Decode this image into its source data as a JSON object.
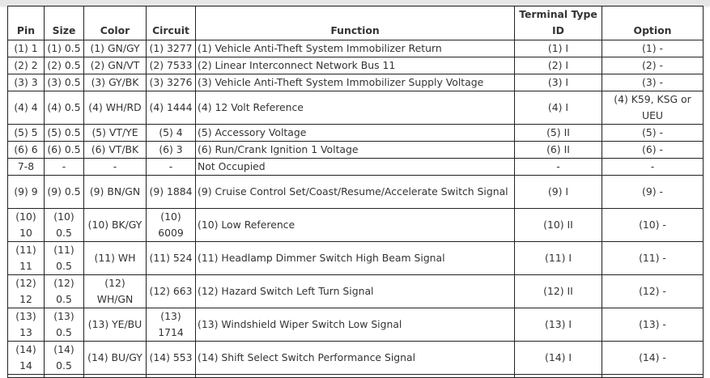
{
  "headers": {
    "pin": "Pin",
    "size": "Size",
    "color": "Color",
    "circuit": "Circuit",
    "function": "Function",
    "terminal": "Terminal Type ID",
    "option": "Option"
  },
  "rows": [
    {
      "pin": "(1) 1",
      "size": "(1) 0.5",
      "color": "(1) GN/GY",
      "circuit": "(1) 3277",
      "function": "(1) Vehicle Anti-Theft System Immobilizer Return",
      "terminal": "(1) I",
      "option": "(1) -"
    },
    {
      "pin": "(2) 2",
      "size": "(2) 0.5",
      "color": "(2) GN/VT",
      "circuit": "(2) 7533",
      "function": "(2) Linear Interconnect Network Bus 11",
      "terminal": "(2) I",
      "option": "(2) -"
    },
    {
      "pin": "(3) 3",
      "size": "(3) 0.5",
      "color": "(3) GY/BK",
      "circuit": "(3) 3276",
      "function": "(3) Vehicle Anti-Theft System Immobilizer Supply Voltage",
      "terminal": "(3) I",
      "option": "(3) -"
    },
    {
      "pin": "(4) 4",
      "size": "(4) 0.5",
      "color": "(4) WH/RD",
      "circuit": "(4) 1444",
      "function": "(4) 12 Volt Reference",
      "terminal": "(4) I",
      "option": "(4) K59, KSG or UEU"
    },
    {
      "pin": "(5) 5",
      "size": "(5) 0.5",
      "color": "(5) VT/YE",
      "circuit": "(5) 4",
      "function": "(5) Accessory Voltage",
      "terminal": "(5) II",
      "option": "(5) -"
    },
    {
      "pin": "(6) 6",
      "size": "(6) 0.5",
      "color": "(6) VT/BK",
      "circuit": "(6) 3",
      "function": "(6) Run/Crank Ignition 1 Voltage",
      "terminal": "(6) II",
      "option": "(6) -"
    },
    {
      "pin": "7-8",
      "size": "-",
      "color": "-",
      "circuit": "-",
      "function": "Not Occupied",
      "terminal": "-",
      "option": "-"
    },
    {
      "pin": "(9) 9",
      "size": "(9) 0.5",
      "color": "(9) BN/GN",
      "circuit": "(9) 1884",
      "function": "(9) Cruise Control Set/Coast/Resume/Accelerate Switch Signal",
      "terminal": "(9) I",
      "option": "(9) -"
    },
    {
      "pin": "(10) 10",
      "size": "(10) 0.5",
      "color": "(10) BK/GY",
      "circuit": "(10) 6009",
      "function": "(10) Low Reference",
      "terminal": "(10) II",
      "option": "(10) -"
    },
    {
      "pin": "(11) 11",
      "size": "(11) 0.5",
      "color": "(11) WH",
      "circuit": "(11) 524",
      "function": "(11) Headlamp Dimmer Switch High Beam Signal",
      "terminal": "(11) I",
      "option": "(11) -"
    },
    {
      "pin": "(12) 12",
      "size": "(12) 0.5",
      "color": "(12) WH/GN",
      "circuit": "(12) 663",
      "function": "(12) Hazard Switch Left Turn Signal",
      "terminal": "(12) II",
      "option": "(12) -"
    },
    {
      "pin": "(13) 13",
      "size": "(13) 0.5",
      "color": "(13) YE/BU",
      "circuit": "(13) 1714",
      "function": "(13) Windshield Wiper Switch Low Signal",
      "terminal": "(13) I",
      "option": "(13) -"
    },
    {
      "pin": "(14) 14",
      "size": "(14) 0.5",
      "color": "(14) BU/GY",
      "circuit": "(14) 553",
      "function": "(14) Shift Select Switch Performance Signal",
      "terminal": "(14) I",
      "option": "(14) -"
    }
  ]
}
